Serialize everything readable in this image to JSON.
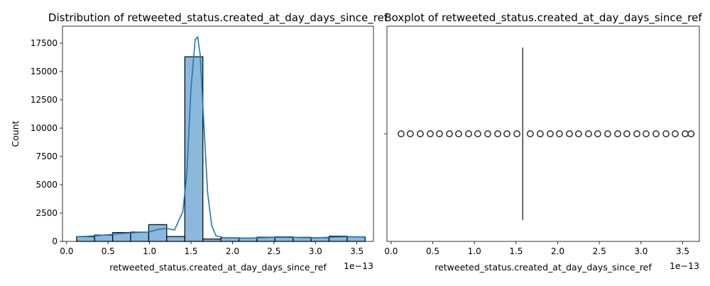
{
  "chart_data": [
    {
      "type": "bar",
      "subtype": "histogram",
      "title": "Distribution of retweeted_status.created_at_day_days_since_ref",
      "xlabel": "retweeted_status.created_at_day_days_since_ref",
      "ylabel": "Count",
      "x_offset_text": "1e−13",
      "xlim": [
        -0.05,
        3.7
      ],
      "ylim": [
        0,
        19000
      ],
      "xticks": [
        0.0,
        0.5,
        1.0,
        1.5,
        2.0,
        2.5,
        3.0,
        3.5
      ],
      "xtick_labels": [
        "0.0",
        "0.5",
        "1.0",
        "1.5",
        "2.0",
        "2.5",
        "3.0",
        "3.5"
      ],
      "yticks": [
        0,
        2500,
        5000,
        7500,
        10000,
        12500,
        15000,
        17500
      ],
      "ytick_labels": [
        "0",
        "2500",
        "5000",
        "7500",
        "10000",
        "12500",
        "15000",
        "17500"
      ],
      "bin_edges": [
        0.12,
        0.337,
        0.555,
        0.772,
        0.99,
        1.207,
        1.425,
        1.643,
        1.86,
        2.078,
        2.295,
        2.512,
        2.73,
        2.947,
        3.165,
        3.383,
        3.6
      ],
      "values": [
        420,
        560,
        780,
        820,
        1480,
        430,
        16300,
        210,
        320,
        300,
        370,
        400,
        360,
        320,
        460,
        410
      ],
      "kde": {
        "x": [
          0.12,
          0.25,
          0.4,
          0.55,
          0.7,
          0.85,
          0.99,
          1.1,
          1.2,
          1.3,
          1.4,
          1.45,
          1.5,
          1.55,
          1.58,
          1.61,
          1.65,
          1.7,
          1.75,
          1.8,
          1.9,
          2.0,
          2.2,
          2.4,
          2.6,
          2.8,
          3.0,
          3.2,
          3.4,
          3.6
        ],
        "y": [
          420,
          450,
          520,
          620,
          720,
          780,
          830,
          1050,
          1150,
          1000,
          2600,
          6000,
          13500,
          17800,
          18050,
          16500,
          11000,
          4300,
          1400,
          500,
          320,
          300,
          290,
          330,
          370,
          340,
          300,
          380,
          420,
          380
        ]
      },
      "bar_color": "#8cb8dc",
      "bar_edge": "#000000",
      "line_color": "#1f77b4"
    },
    {
      "type": "box",
      "title": "Boxplot of retweeted_status.created_at_day_days_since_ref",
      "xlabel": "retweeted_status.created_at_day_days_since_ref",
      "x_offset_text": "1e−13",
      "xlim": [
        -0.05,
        3.7
      ],
      "xticks": [
        0.0,
        0.5,
        1.0,
        1.5,
        2.0,
        2.5,
        3.0,
        3.5
      ],
      "xtick_labels": [
        "0.0",
        "0.5",
        "1.0",
        "1.5",
        "2.0",
        "2.5",
        "3.0",
        "3.5"
      ],
      "box": {
        "q1": 1.58,
        "median": 1.58,
        "q3": 1.58,
        "whisker_low": 1.58,
        "whisker_high": 1.58
      },
      "outliers": [
        0.12,
        0.23,
        0.35,
        0.47,
        0.58,
        0.7,
        0.81,
        0.93,
        1.04,
        1.16,
        1.28,
        1.39,
        1.51,
        1.67,
        1.79,
        1.91,
        2.02,
        2.14,
        2.25,
        2.37,
        2.48,
        2.6,
        2.72,
        2.83,
        2.95,
        3.06,
        3.18,
        3.3,
        3.41,
        3.53,
        3.6
      ],
      "color": "#3a3a3a"
    }
  ]
}
